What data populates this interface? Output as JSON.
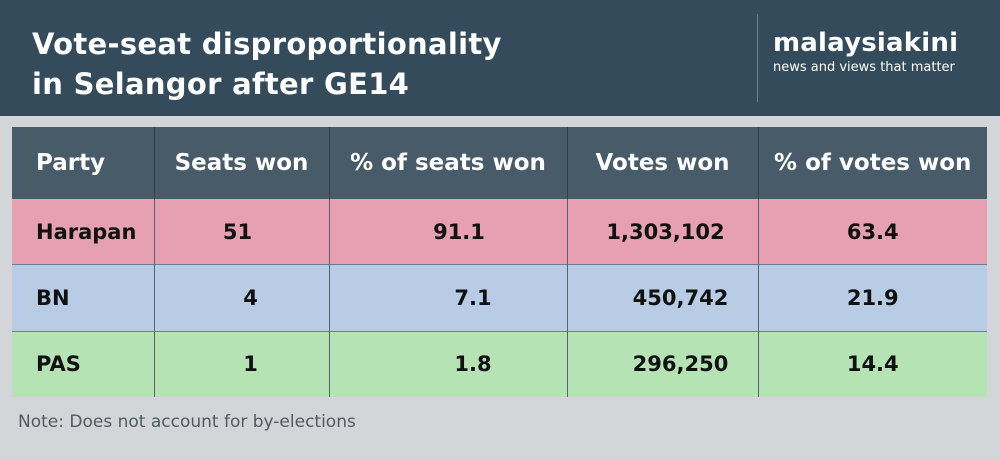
{
  "header": {
    "title_line1": "Vote-seat disproportionality",
    "title_line2": "in Selangor after GE14",
    "brand_name": "malaysiakini",
    "brand_tagline": "news and views that matter"
  },
  "table": {
    "columns": [
      "Party",
      "Seats won",
      "% of seats won",
      "Votes won",
      "% of votes won"
    ],
    "rows": [
      {
        "party": "Harapan",
        "seats": "51",
        "seats_pct": "91.1",
        "votes": "1,303,102",
        "votes_pct": "63.4",
        "color": "#e6a0b1"
      },
      {
        "party": "BN",
        "seats": "4",
        "seats_pct": "7.1",
        "votes": "450,742",
        "votes_pct": "21.9",
        "color": "#b8cde5"
      },
      {
        "party": "PAS",
        "seats": "1",
        "seats_pct": "1.8",
        "votes": "296,250",
        "votes_pct": "14.4",
        "color": "#b5e3b4"
      }
    ]
  },
  "note": "Note: Does not account for by-elections",
  "colors": {
    "header_bg": "#334b5a",
    "table_header_bg": "#475b68",
    "page_bg": "#d3d6d8"
  }
}
